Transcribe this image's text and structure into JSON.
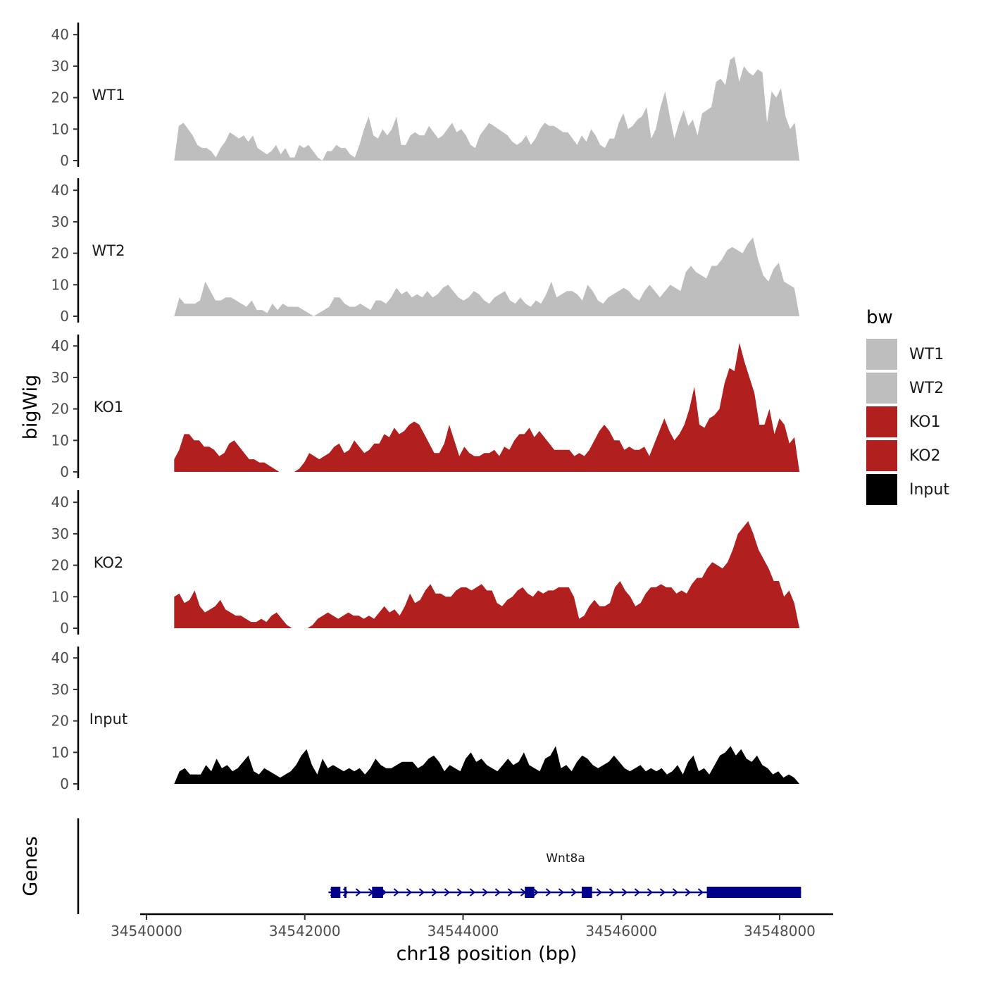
{
  "chart_data": {
    "type": "area",
    "title": "",
    "ylabel": "bigWig",
    "xlabel": "chr18 position (bp)",
    "genes_label": "Genes",
    "xlim": [
      34539950,
      34548700
    ],
    "ylim": [
      0,
      44
    ],
    "x_ticks": [
      34540000,
      34542000,
      34544000,
      34546000,
      34548000
    ],
    "x_tick_labels": [
      "34540000",
      "34542000",
      "34544000",
      "34546000",
      "34548000"
    ],
    "y_ticks": [
      0,
      10,
      20,
      30,
      40
    ],
    "y_tick_labels": [
      "0",
      "10",
      "20",
      "30",
      "40"
    ],
    "legend": {
      "title": "bw",
      "position": "right",
      "entries": [
        {
          "label": "WT1",
          "color": "#bebebe"
        },
        {
          "label": "WT2",
          "color": "#bebebe"
        },
        {
          "label": "KO1",
          "color": "#b21f1f"
        },
        {
          "label": "KO2",
          "color": "#b21f1f"
        },
        {
          "label": "Input",
          "color": "#000000"
        }
      ]
    },
    "x_start": 34540350,
    "x_end": 34548250,
    "series": [
      {
        "name": "WT1",
        "color": "#bebebe",
        "values": [
          0,
          11,
          12,
          10,
          8,
          5,
          4,
          4,
          3,
          1,
          4,
          6,
          9,
          8,
          7,
          8,
          6,
          8,
          4,
          3,
          2,
          3,
          5,
          2,
          4,
          1,
          1,
          5,
          4,
          5,
          3,
          1,
          0,
          3,
          3,
          5,
          4,
          4,
          2,
          1,
          5,
          10,
          14,
          8,
          7,
          10,
          8,
          10,
          14,
          5,
          5,
          8,
          9,
          8,
          8,
          11,
          9,
          7,
          8,
          10,
          12,
          9,
          10,
          8,
          5,
          4,
          8,
          10,
          12,
          11,
          10,
          9,
          8,
          6,
          5,
          6,
          8,
          5,
          7,
          10,
          12,
          11,
          11,
          10,
          9,
          9,
          7,
          5,
          8,
          6,
          10,
          8,
          5,
          4,
          7,
          7,
          12,
          15,
          10,
          11,
          13,
          14,
          17,
          7,
          10,
          17,
          22,
          14,
          7,
          12,
          16,
          11,
          13,
          8,
          15,
          16,
          17,
          25,
          26,
          24,
          32,
          33,
          25,
          30,
          28,
          27,
          29,
          28,
          12,
          22,
          20,
          23,
          14,
          10,
          12,
          0
        ]
      },
      {
        "name": "WT2",
        "color": "#bebebe",
        "values": [
          0,
          6,
          4,
          4,
          4,
          5,
          11,
          8,
          5,
          5,
          6,
          6,
          5,
          4,
          3,
          5,
          2,
          2,
          1,
          4,
          2,
          4,
          3,
          3,
          3,
          2,
          1,
          0,
          1,
          2,
          3,
          6,
          6,
          4,
          3,
          3,
          4,
          3,
          2,
          5,
          5,
          4,
          6,
          9,
          7,
          8,
          6,
          7,
          6,
          8,
          6,
          7,
          9,
          10,
          8,
          6,
          5,
          6,
          8,
          7,
          5,
          4,
          6,
          7,
          8,
          5,
          4,
          6,
          4,
          3,
          5,
          4,
          7,
          11,
          6,
          7,
          8,
          8,
          7,
          5,
          10,
          8,
          5,
          4,
          6,
          7,
          8,
          9,
          8,
          6,
          5,
          8,
          10,
          8,
          6,
          8,
          10,
          9,
          8,
          14,
          16,
          14,
          13,
          12,
          16,
          16,
          18,
          21,
          22,
          21,
          20,
          23,
          25,
          18,
          13,
          11,
          15,
          17,
          11,
          10,
          9,
          0
        ]
      },
      {
        "name": "KO1",
        "color": "#b21f1f",
        "values": [
          4,
          7,
          12,
          12,
          10,
          10,
          8,
          8,
          7,
          5,
          6,
          9,
          10,
          8,
          6,
          4,
          4,
          3,
          3,
          2,
          1,
          0,
          0,
          0,
          0,
          1,
          3,
          6,
          5,
          4,
          5,
          6,
          8,
          9,
          6,
          7,
          10,
          8,
          6,
          7,
          9,
          9,
          12,
          11,
          14,
          12,
          13,
          15,
          16,
          15,
          12,
          9,
          6,
          6,
          9,
          15,
          10,
          5,
          8,
          6,
          5,
          5,
          6,
          6,
          7,
          5,
          8,
          7,
          10,
          12,
          12,
          14,
          11,
          13,
          11,
          9,
          7,
          7,
          7,
          7,
          5,
          6,
          5,
          7,
          10,
          13,
          15,
          13,
          10,
          10,
          7,
          8,
          7,
          7,
          8,
          5,
          9,
          13,
          17,
          13,
          10,
          12,
          15,
          20,
          27,
          15,
          14,
          17,
          18,
          20,
          28,
          33,
          32,
          41,
          35,
          30,
          25,
          15,
          15,
          20,
          12,
          17,
          15,
          9,
          11,
          0
        ]
      },
      {
        "name": "KO2",
        "color": "#b21f1f",
        "values": [
          10,
          11,
          8,
          9,
          12,
          7,
          5,
          6,
          7,
          9,
          6,
          5,
          4,
          4,
          3,
          2,
          2,
          3,
          2,
          4,
          5,
          3,
          1,
          0,
          0,
          0,
          0,
          1,
          3,
          4,
          5,
          4,
          3,
          4,
          5,
          4,
          4,
          3,
          4,
          3,
          5,
          7,
          5,
          6,
          4,
          7,
          11,
          8,
          9,
          12,
          14,
          11,
          11,
          10,
          10,
          12,
          13,
          13,
          12,
          13,
          14,
          12,
          12,
          8,
          7,
          9,
          10,
          12,
          13,
          11,
          10,
          12,
          11,
          12,
          12,
          13,
          13,
          13,
          10,
          3,
          4,
          7,
          9,
          7,
          7,
          8,
          13,
          15,
          12,
          10,
          7,
          8,
          11,
          13,
          13,
          14,
          13,
          13,
          11,
          12,
          11,
          14,
          16,
          16,
          19,
          21,
          20,
          19,
          21,
          25,
          30,
          32,
          34,
          30,
          25,
          22,
          19,
          15,
          15,
          10,
          12,
          8,
          0
        ]
      },
      {
        "name": "Input",
        "color": "#000000",
        "values": [
          0,
          4,
          5,
          3,
          3,
          3,
          6,
          4,
          8,
          5,
          6,
          4,
          5,
          7,
          9,
          4,
          3,
          5,
          4,
          3,
          2,
          3,
          4,
          6,
          9,
          11,
          6,
          3,
          8,
          5,
          6,
          5,
          4,
          5,
          4,
          5,
          3,
          5,
          8,
          6,
          5,
          5,
          6,
          7,
          7,
          7,
          5,
          6,
          8,
          9,
          7,
          4,
          6,
          5,
          4,
          8,
          10,
          7,
          8,
          6,
          5,
          4,
          6,
          8,
          6,
          7,
          10,
          6,
          5,
          4,
          8,
          9,
          12,
          5,
          6,
          4,
          7,
          9,
          8,
          6,
          5,
          6,
          7,
          9,
          7,
          5,
          4,
          5,
          6,
          4,
          5,
          4,
          5,
          3,
          4,
          6,
          3,
          7,
          9,
          4,
          5,
          3,
          6,
          9,
          10,
          12,
          9,
          11,
          8,
          7,
          9,
          6,
          5,
          3,
          4,
          2,
          3,
          2,
          0
        ]
      }
    ],
    "gene_track": {
      "gene_name": "Wnt8a",
      "strand": "+",
      "start": 34542300,
      "end": 34548270,
      "color": "#00008b",
      "exons": [
        [
          34542330,
          34542450
        ],
        [
          34542500,
          34542520
        ],
        [
          34542850,
          34542990
        ],
        [
          34544780,
          34544900
        ],
        [
          34545500,
          34545630
        ],
        [
          34547080,
          34548270
        ]
      ]
    }
  }
}
